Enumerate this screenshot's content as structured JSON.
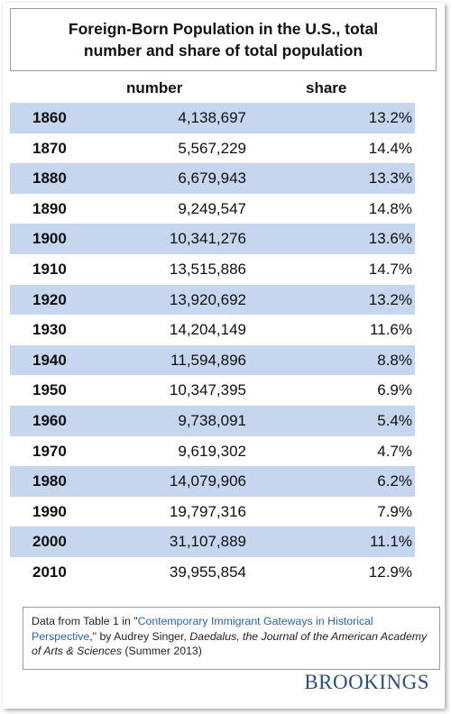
{
  "title_line1": "Foreign-Born Population in the U.S., total",
  "title_line2": "number and share of total population",
  "chart_data": {
    "type": "table",
    "columns": [
      "",
      "number",
      "share"
    ],
    "rows": [
      {
        "year": "1860",
        "number": "4,138,697",
        "share": "13.2%"
      },
      {
        "year": "1870",
        "number": "5,567,229",
        "share": "14.4%"
      },
      {
        "year": "1880",
        "number": "6,679,943",
        "share": "13.3%"
      },
      {
        "year": "1890",
        "number": "9,249,547",
        "share": "14.8%"
      },
      {
        "year": "1900",
        "number": "10,341,276",
        "share": "13.6%"
      },
      {
        "year": "1910",
        "number": "13,515,886",
        "share": "14.7%"
      },
      {
        "year": "1920",
        "number": "13,920,692",
        "share": "13.2%"
      },
      {
        "year": "1930",
        "number": "14,204,149",
        "share": "11.6%"
      },
      {
        "year": "1940",
        "number": "11,594,896",
        "share": "8.8%"
      },
      {
        "year": "1950",
        "number": "10,347,395",
        "share": "6.9%"
      },
      {
        "year": "1960",
        "number": "9,738,091",
        "share": "5.4%"
      },
      {
        "year": "1970",
        "number": "9,619,302",
        "share": "4.7%"
      },
      {
        "year": "1980",
        "number": "14,079,906",
        "share": "6.2%"
      },
      {
        "year": "1990",
        "number": "19,797,316",
        "share": "7.9%"
      },
      {
        "year": "2000",
        "number": "31,107,889",
        "share": "11.1%"
      },
      {
        "year": "2010",
        "number": "39,955,854",
        "share": "12.9%"
      }
    ]
  },
  "source": {
    "prefix": "Data from Table 1 in \"",
    "link_text": "Contemporary Immigrant Gateways in Historical Perspective",
    "middle": ",\" by Audrey Singer, ",
    "journal": "Daedalus, the Journal of the American Academy of Arts & Sciences",
    "suffix": " (Summer 2013)"
  },
  "brand": "BROOKINGS",
  "colors": {
    "row_shade": "#c5d6ee",
    "link": "#2a63ad",
    "brand": "#2b4f7d"
  }
}
